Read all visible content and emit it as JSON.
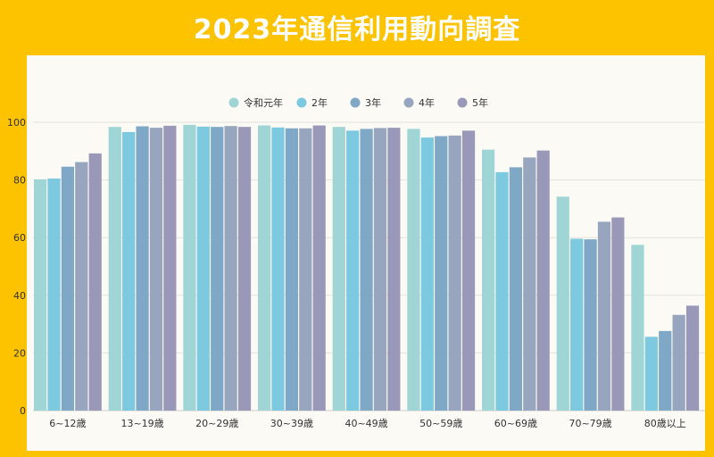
{
  "title": "2023年通信利用動向調査",
  "chart_data": {
    "type": "bar",
    "title": "2023年通信利用動向調査",
    "xlabel": "",
    "ylabel": "",
    "ylim": [
      0,
      100
    ],
    "yticks": [
      0,
      20,
      40,
      60,
      80,
      100
    ],
    "grid": true,
    "legend_position": "top",
    "categories": [
      "6~12歳",
      "13~19歳",
      "20~29歳",
      "30~39歳",
      "40~49歳",
      "50~59歳",
      "60~69歳",
      "70~79歳",
      "80歳以上"
    ],
    "series": [
      {
        "name": "令和元年",
        "color": "#A0D5D6",
        "values": [
          80.2,
          98.4,
          99.1,
          98.9,
          98.4,
          97.7,
          90.5,
          74.2,
          57.5
        ]
      },
      {
        "name": "2年",
        "color": "#7CC9E0",
        "values": [
          80.5,
          96.6,
          98.5,
          98.2,
          97.1,
          94.7,
          82.7,
          59.6,
          25.6
        ]
      },
      {
        "name": "3年",
        "color": "#7FA8C7",
        "values": [
          84.6,
          98.6,
          98.4,
          97.9,
          97.7,
          95.2,
          84.4,
          59.4,
          27.6
        ]
      },
      {
        "name": "4年",
        "color": "#97A5BE",
        "values": [
          86.2,
          98.1,
          98.7,
          97.9,
          98.0,
          95.4,
          87.8,
          65.5,
          33.2
        ]
      },
      {
        "name": "5年",
        "color": "#9A98B8",
        "values": [
          89.2,
          98.8,
          98.4,
          98.9,
          98.1,
          97.1,
          90.2,
          67.0,
          36.4
        ]
      }
    ]
  }
}
